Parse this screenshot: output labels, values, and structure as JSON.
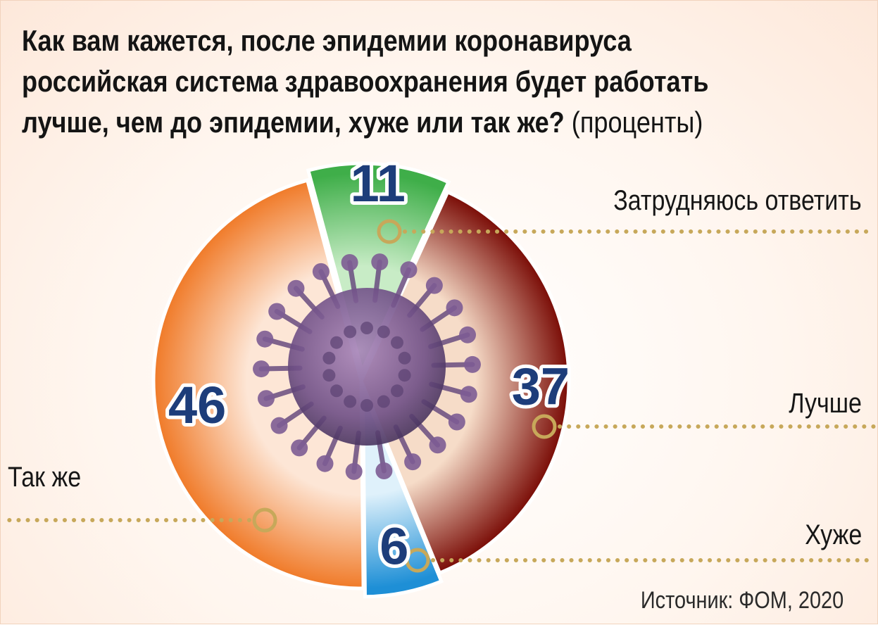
{
  "title": {
    "question": "Как вам кажется, после эпидемии коронавируса российская система здравоохранения будет работать лучше, чем до эпидемии, хуже или так же?",
    "unit": "(проценты)"
  },
  "source": "Источник: ФОМ, 2020",
  "chart_data": {
    "type": "pie",
    "unit": "%",
    "slices": [
      {
        "label": "Затрудняюсь ответить",
        "value": 11,
        "color": "#3fae49",
        "light": "#c8ecc6"
      },
      {
        "label": "Лучше",
        "value": 37,
        "color": "#7a0c06",
        "light": "#f6dcc8"
      },
      {
        "label": "Хуже",
        "value": 6,
        "color": "#1e8fd6",
        "light": "#dff1fb"
      },
      {
        "label": "Так же",
        "value": 46,
        "color": "#f07a28",
        "light": "#fde6d6"
      }
    ]
  }
}
